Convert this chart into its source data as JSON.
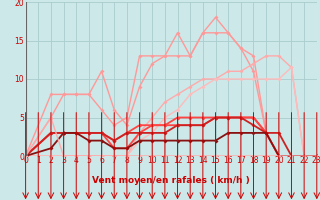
{
  "background_color": "#cce8e8",
  "grid_color": "#aacccc",
  "xlabel": "Vent moyen/en rafales ( km/h )",
  "xlim": [
    0,
    23
  ],
  "ylim": [
    0,
    20
  ],
  "xticks": [
    0,
    1,
    2,
    3,
    4,
    5,
    6,
    7,
    8,
    9,
    10,
    11,
    12,
    13,
    14,
    15,
    16,
    17,
    18,
    19,
    20,
    21,
    22,
    23
  ],
  "yticks": [
    0,
    5,
    10,
    15,
    20
  ],
  "series": [
    {
      "x": [
        0,
        2,
        3,
        4,
        5,
        6,
        7,
        8,
        9,
        10,
        11,
        12,
        13,
        14,
        15,
        16,
        17,
        18,
        19,
        20,
        21,
        22,
        23
      ],
      "y": [
        0,
        8,
        8,
        8,
        8,
        6,
        4,
        5,
        13,
        13,
        13,
        16,
        13,
        16,
        16,
        16,
        14,
        11,
        3,
        0,
        0,
        0,
        0
      ],
      "color": "#ff9999",
      "lw": 1.0,
      "marker": "D",
      "ms": 2.0
    },
    {
      "x": [
        0,
        2,
        3,
        4,
        5,
        6,
        7,
        8,
        9,
        10,
        11,
        12,
        13,
        14,
        15,
        16,
        17,
        18,
        19,
        20,
        21,
        22,
        23
      ],
      "y": [
        0,
        5,
        8,
        8,
        8,
        11,
        6,
        4,
        9,
        12,
        13,
        13,
        13,
        16,
        18,
        16,
        14,
        13,
        3,
        0,
        0,
        0,
        0
      ],
      "color": "#ff9999",
      "lw": 1.0,
      "marker": "D",
      "ms": 2.0
    },
    {
      "x": [
        0,
        2,
        3,
        4,
        5,
        6,
        7,
        8,
        9,
        10,
        11,
        12,
        13,
        14,
        15,
        16,
        17,
        18,
        19,
        20,
        21,
        22,
        23
      ],
      "y": [
        0,
        0,
        0,
        0,
        0,
        0,
        0,
        0,
        3,
        5,
        7,
        8,
        9,
        10,
        10,
        11,
        11,
        12,
        13,
        13,
        11.5,
        0,
        0
      ],
      "color": "#ffaaaa",
      "lw": 1.0,
      "marker": "D",
      "ms": 2.0
    },
    {
      "x": [
        0,
        2,
        3,
        4,
        5,
        6,
        7,
        8,
        9,
        10,
        11,
        12,
        13,
        14,
        15,
        16,
        17,
        18,
        19,
        20,
        21,
        22,
        23
      ],
      "y": [
        0,
        0,
        0,
        0,
        0,
        0,
        0,
        0,
        2,
        3,
        5,
        6,
        8,
        9,
        10,
        10,
        10,
        10,
        10,
        10,
        11.5,
        0,
        0
      ],
      "color": "#ffbbbb",
      "lw": 1.0,
      "marker": "D",
      "ms": 2.0
    },
    {
      "x": [
        0,
        2,
        3,
        4,
        5,
        6,
        7,
        8,
        9,
        10,
        11,
        12,
        13,
        14,
        15,
        16,
        17,
        18,
        19,
        20,
        21,
        22,
        23
      ],
      "y": [
        0,
        3,
        3,
        3,
        3,
        3,
        2,
        3,
        4,
        4,
        4,
        5,
        5,
        5,
        5,
        5,
        5,
        5,
        3,
        0,
        0,
        0,
        0
      ],
      "color": "#ff4444",
      "lw": 1.3,
      "marker": "D",
      "ms": 2.0
    },
    {
      "x": [
        0,
        2,
        3,
        4,
        5,
        6,
        7,
        8,
        9,
        10,
        11,
        12,
        13,
        14,
        15,
        16,
        17,
        18,
        19,
        20,
        21,
        22,
        23
      ],
      "y": [
        0,
        3,
        3,
        3,
        3,
        3,
        1,
        1,
        3,
        4,
        4,
        4,
        4,
        4,
        5,
        5,
        5,
        5,
        3,
        0,
        0,
        0,
        0
      ],
      "color": "#ff4444",
      "lw": 1.3,
      "marker": "D",
      "ms": 2.0
    },
    {
      "x": [
        0,
        2,
        3,
        4,
        5,
        6,
        7,
        8,
        9,
        10,
        11,
        12,
        13,
        14,
        15,
        16,
        17,
        18,
        19,
        20,
        21,
        22,
        23
      ],
      "y": [
        0,
        3,
        3,
        3,
        3,
        3,
        2,
        3,
        3,
        3,
        3,
        4,
        4,
        4,
        5,
        5,
        5,
        4,
        3,
        3,
        0,
        0,
        0
      ],
      "color": "#cc2222",
      "lw": 1.3,
      "marker": "D",
      "ms": 2.0
    },
    {
      "x": [
        0,
        2,
        3,
        4,
        5,
        6,
        7,
        8,
        9,
        10,
        11,
        12,
        13,
        14,
        15,
        16,
        17,
        18,
        19,
        20,
        21,
        22,
        23
      ],
      "y": [
        0,
        1,
        3,
        3,
        2,
        2,
        1,
        1,
        2,
        2,
        2,
        2,
        2,
        2,
        2,
        3,
        3,
        3,
        3,
        0,
        0,
        0,
        0
      ],
      "color": "#881111",
      "lw": 1.3,
      "marker": "D",
      "ms": 2.0
    },
    {
      "x": [
        0,
        2,
        3,
        4,
        5,
        6,
        7,
        8,
        9,
        10,
        11,
        12,
        13,
        14,
        15,
        16,
        17,
        18,
        19,
        20,
        21,
        22,
        23
      ],
      "y": [
        0,
        5,
        0,
        0,
        0,
        0,
        0,
        0,
        0,
        0,
        0,
        0,
        0,
        0,
        0,
        0,
        0,
        0,
        0,
        0,
        0,
        0,
        0
      ],
      "color": "#ffaaaa",
      "lw": 1.0,
      "marker": "D",
      "ms": 2.0
    }
  ],
  "arrow_color": "#cc0000",
  "axis_label_color": "#cc0000",
  "tick_label_color": "#cc0000",
  "label_fontsize": 6.5,
  "tick_fontsize": 5.5
}
